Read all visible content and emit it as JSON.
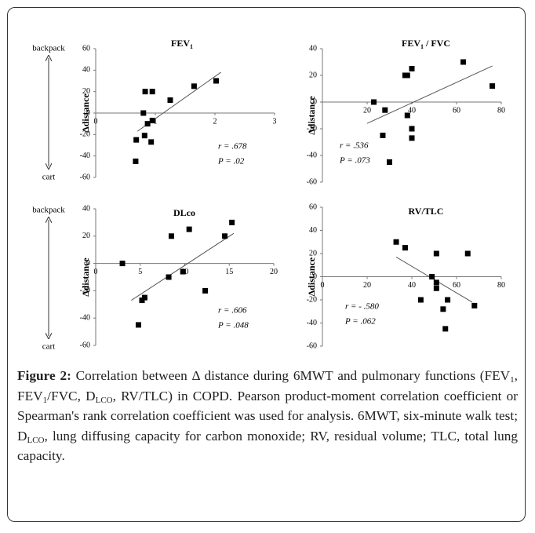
{
  "chart_data": [
    {
      "type": "scatter",
      "title": [
        {
          "text": "FEV"
        },
        {
          "sub": "1"
        }
      ],
      "y_label": "Δdistance",
      "color": "#000000",
      "x": [
        0.83,
        0.95,
        1.25,
        1.65,
        2.02,
        0.8,
        0.87,
        0.95,
        0.82,
        0.93,
        0.68,
        0.67
      ],
      "y": [
        20,
        20,
        12,
        25,
        30,
        0,
        -10,
        -7,
        -21,
        -27,
        -25,
        -45
      ],
      "xlim": [
        0,
        3
      ],
      "ylim": [
        -60,
        60
      ],
      "xticks": [
        0,
        1,
        2,
        3
      ],
      "yticks": [
        -60,
        -40,
        -20,
        0,
        20,
        40,
        60
      ],
      "trendline": {
        "x": [
          0.7,
          2.1
        ],
        "y": [
          -17,
          38
        ]
      },
      "annotations": [
        "r = .678",
        "P = .02"
      ]
    },
    {
      "type": "scatter",
      "title": [
        {
          "text": "FEV"
        },
        {
          "sub": "1"
        },
        {
          "text": " / FVC"
        }
      ],
      "y_label": "Δdistance",
      "color": "#000000",
      "x": [
        23,
        28,
        37,
        38,
        40,
        40,
        38,
        27,
        40,
        30,
        63,
        76
      ],
      "y": [
        0,
        -6,
        20,
        20,
        25,
        -20,
        -10,
        -25,
        -27,
        -45,
        30,
        12
      ],
      "xlim": [
        0,
        80
      ],
      "ylim": [
        -60,
        40
      ],
      "xticks": [
        20,
        40,
        60,
        80
      ],
      "yticks": [
        -60,
        -40,
        -20,
        0,
        20,
        40
      ],
      "trendline": {
        "x": [
          20,
          76
        ],
        "y": [
          -16,
          27
        ]
      },
      "annotations": [
        "r = .536",
        "P = .073"
      ]
    },
    {
      "type": "scatter",
      "title": [
        {
          "text": "DLco"
        }
      ],
      "y_label": "Δdistance",
      "color": "#000000",
      "x": [
        3,
        8.5,
        10.5,
        15.3,
        14.5,
        8.2,
        9.8,
        12.3,
        5.5,
        5.2,
        4.8
      ],
      "y": [
        0,
        20,
        25,
        30,
        20,
        -10,
        -6,
        -20,
        -25,
        -27,
        -45
      ],
      "xlim": [
        0,
        20
      ],
      "ylim": [
        -60,
        40
      ],
      "xticks": [
        0,
        5,
        10,
        15,
        20
      ],
      "yticks": [
        -60,
        -40,
        -20,
        0,
        20,
        40
      ],
      "trendline": {
        "x": [
          4,
          15.5
        ],
        "y": [
          -27,
          22
        ]
      },
      "annotations": [
        "r = .606",
        "P = .048"
      ]
    },
    {
      "type": "scatter",
      "title": [
        {
          "text": "RV/TLC"
        }
      ],
      "y_label": "Δdistance",
      "color": "#000000",
      "x": [
        33,
        37,
        51,
        65,
        49,
        51,
        51,
        44,
        56,
        54,
        55,
        68
      ],
      "y": [
        30,
        25,
        20,
        20,
        0,
        -5,
        -10,
        -20,
        -20,
        -28,
        -45,
        -25
      ],
      "xlim": [
        0,
        80
      ],
      "ylim": [
        -60,
        60
      ],
      "xticks": [
        0,
        20,
        40,
        60,
        80
      ],
      "yticks": [
        -60,
        -40,
        -20,
        0,
        20,
        40,
        60
      ],
      "trendline": {
        "x": [
          33,
          67
        ],
        "y": [
          17,
          -22
        ]
      },
      "annotations": [
        "r = - .580",
        "P = .062"
      ]
    }
  ],
  "side_labels": [
    {
      "top": "backpack",
      "bottom": "cart"
    },
    {
      "top": "backpack",
      "bottom": "cart"
    }
  ],
  "caption": {
    "label": "Figure 2:",
    "segments": [
      {
        "text": "Correlation between Δ distance during 6MWT and pulmonary functions (FEV"
      },
      {
        "sub": "1"
      },
      {
        "text": ", FEV"
      },
      {
        "sub": "1"
      },
      {
        "text": "/FVC, D"
      },
      {
        "sub": "LCO"
      },
      {
        "text": ", RV/TLC) in COPD. Pearson product-moment correlation coefficient or Spearman's rank correlation coefficient was used for analysis. 6MWT, six-minute walk test; D"
      },
      {
        "sub": "LCO"
      },
      {
        "text": ", lung diffusing capacity for carbon monoxide; RV, residual volume; TLC, total lung capacity."
      }
    ]
  }
}
